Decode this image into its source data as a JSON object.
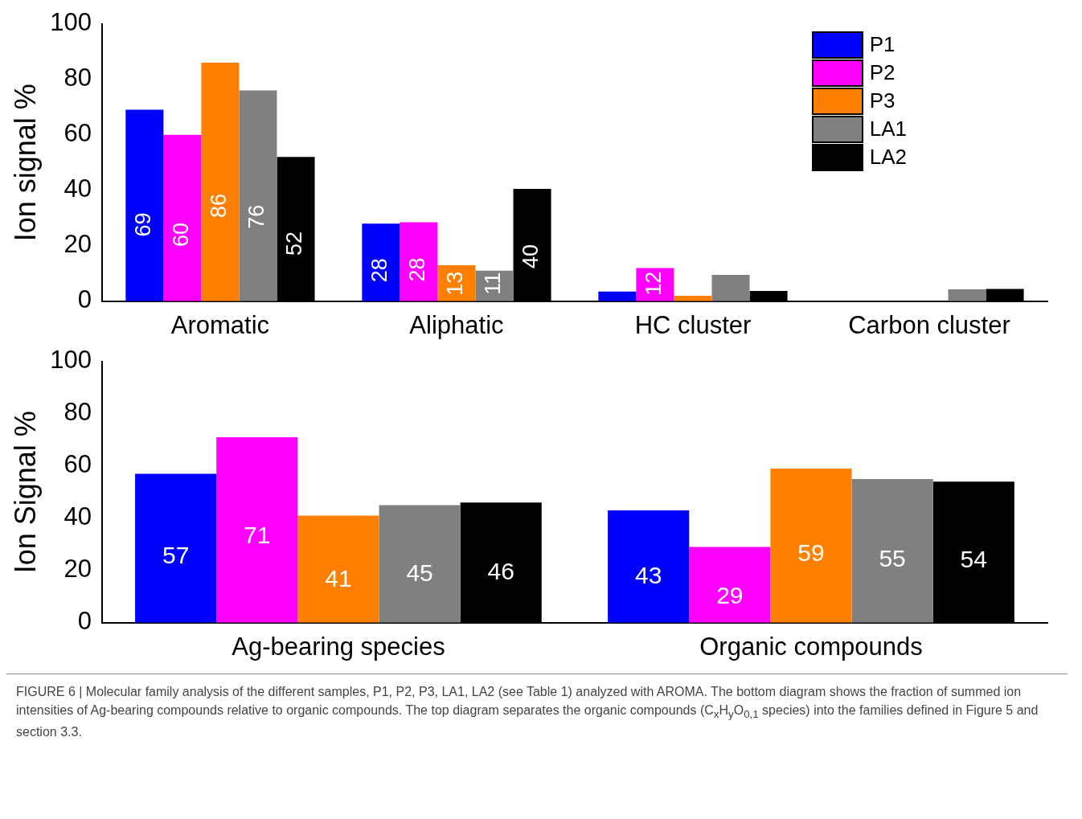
{
  "chart_data": [
    {
      "type": "bar",
      "ylabel": "Ion signal %",
      "categories": [
        "Aromatic",
        "Aliphatic",
        "HC cluster",
        "Carbon cluster"
      ],
      "ylim": [
        0,
        100
      ],
      "yticks": [
        0,
        20,
        40,
        60,
        80,
        100
      ],
      "grid": false,
      "legend": "top right",
      "series": [
        {
          "name": "P1",
          "color": "#0000ff",
          "values": [
            69,
            28,
            3.5,
            0
          ],
          "value_labels": [
            "69",
            "28",
            null,
            null
          ]
        },
        {
          "name": "P2",
          "color": "#ff00ff",
          "values": [
            60,
            28.5,
            12,
            0
          ],
          "value_labels": [
            "60",
            "28",
            "12",
            null
          ]
        },
        {
          "name": "P3",
          "color": "#ff8000",
          "values": [
            86,
            13,
            2,
            0
          ],
          "value_labels": [
            "86",
            "13",
            null,
            null
          ]
        },
        {
          "name": "LA1",
          "color": "#808080",
          "values": [
            76,
            11,
            9.5,
            4.3
          ],
          "value_labels": [
            "76",
            "11",
            null,
            null
          ]
        },
        {
          "name": "LA2",
          "color": "#000000",
          "values": [
            52,
            40.5,
            3.7,
            4.4
          ],
          "value_labels": [
            "52",
            "40",
            null,
            null
          ]
        }
      ]
    },
    {
      "type": "bar",
      "ylabel": "Ion Signal %",
      "categories": [
        "Ag-bearing species",
        "Organic compounds"
      ],
      "ylim": [
        0,
        100
      ],
      "yticks": [
        0,
        20,
        40,
        60,
        80,
        100
      ],
      "grid": false,
      "data_labels": true,
      "series": [
        {
          "color": "#0000ff",
          "values": [
            57,
            43
          ]
        },
        {
          "color": "#ff00ff",
          "values": [
            71,
            29
          ]
        },
        {
          "color": "#ff8000",
          "values": [
            41,
            59
          ]
        },
        {
          "color": "#808080",
          "values": [
            45,
            55
          ]
        },
        {
          "color": "#000000",
          "values": [
            46,
            54
          ]
        }
      ],
      "annotations": [
        "FIGURE 6 | Molecular family analysis of the different samples, P1, P2, P3, LA1, LA2 (see Table 1) analyzed with AROMA. The bottom diagram shows the fraction of summed ion intensities of Ag-bearing compounds relative to organic compounds. The top diagram separates the organic compounds (C$_{x}$H$_{y}$O$_{0,1}$ species) into the families defined in Figure 5 and section 3.3."
      ]
    }
  ]
}
